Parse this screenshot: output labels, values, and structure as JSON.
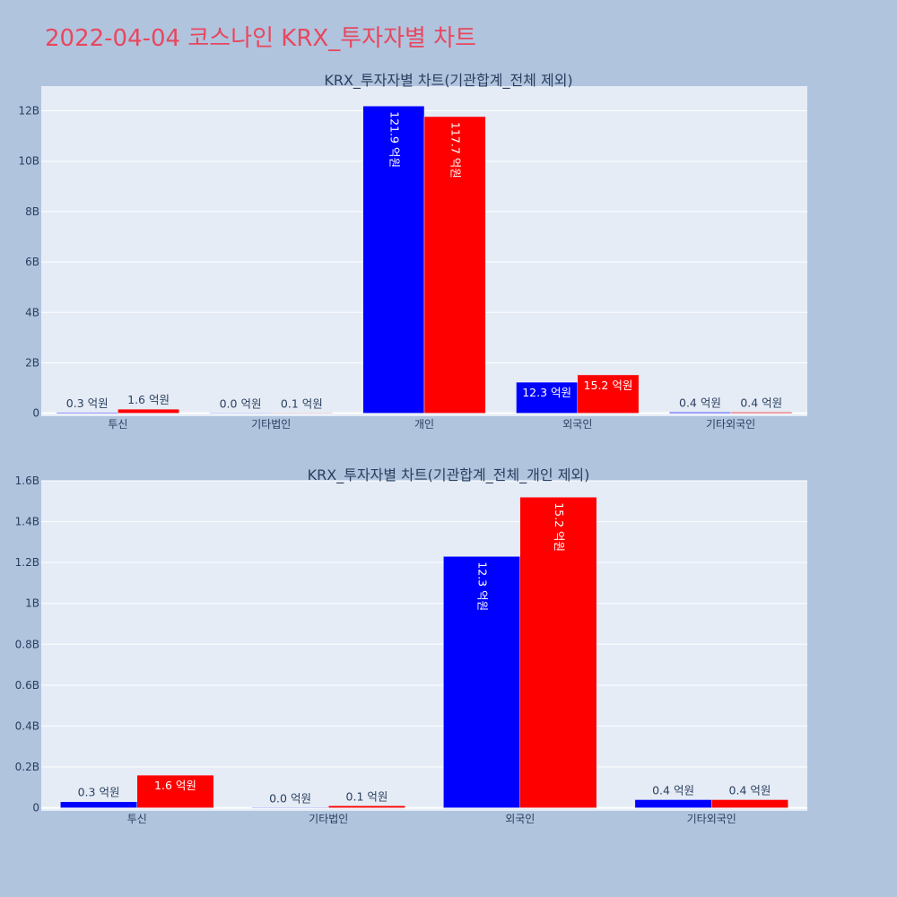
{
  "page_title": "2022-04-04 코스나인 KRX_투자자별 차트",
  "colors": {
    "buy": "#0000ff",
    "sell": "#ff0000",
    "title": "#e8475f",
    "plot_bg": "#e5ecf6",
    "page_bg": "#b0c4de"
  },
  "chart_data": [
    {
      "type": "bar",
      "title": "KRX_투자자별 차트(기관합계_전체 제외)",
      "categories": [
        "투신",
        "기타법인",
        "개인",
        "외국인",
        "기타외국인"
      ],
      "series": [
        {
          "color": "#0000ff",
          "values": [
            0.03,
            0.0,
            12.19,
            1.23,
            0.04
          ],
          "labels": [
            "0.3 억원",
            "0.0 억원",
            "121.9 억원",
            "12.3 억원",
            "0.4 억원"
          ]
        },
        {
          "color": "#ff0000",
          "values": [
            0.16,
            0.01,
            11.77,
            1.52,
            0.04
          ],
          "labels": [
            "1.6 억원",
            "0.1 억원",
            "117.7 억원",
            "15.2 억원",
            "0.4 억원"
          ]
        }
      ],
      "yticks": [
        0,
        2,
        4,
        6,
        8,
        10,
        12
      ],
      "ytick_labels": [
        "0",
        "2B",
        "4B",
        "6B",
        "8B",
        "10B",
        "12B"
      ],
      "ylim": [
        -0.12,
        12.98
      ],
      "grid": true
    },
    {
      "type": "bar",
      "title": "KRX_투자자별 차트(기관합계_전체_개인 제외)",
      "categories": [
        "투신",
        "기타법인",
        "외국인",
        "기타외국인"
      ],
      "series": [
        {
          "color": "#0000ff",
          "values": [
            0.03,
            0.0,
            1.23,
            0.04
          ],
          "labels": [
            "0.3 억원",
            "0.0 억원",
            "12.3 억원",
            "0.4 억원"
          ]
        },
        {
          "color": "#ff0000",
          "values": [
            0.16,
            0.01,
            1.52,
            0.04
          ],
          "labels": [
            "1.6 억원",
            "0.1 억원",
            "15.2 억원",
            "0.4 억원"
          ]
        }
      ],
      "yticks": [
        0,
        0.2,
        0.4,
        0.6,
        0.8,
        1.0,
        1.2,
        1.4,
        1.6
      ],
      "ytick_labels": [
        "0",
        "0.2B",
        "0.4B",
        "0.6B",
        "0.8B",
        "1B",
        "1.2B",
        "1.4B",
        "1.6B"
      ],
      "ylim": [
        -0.015,
        1.6
      ],
      "grid": true
    }
  ]
}
